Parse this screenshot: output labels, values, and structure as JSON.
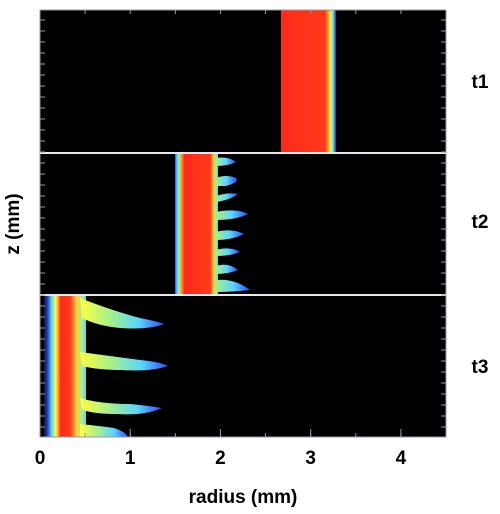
{
  "chart_data": {
    "type": "heatmap",
    "title": "",
    "xlabel": "radius (mm)",
    "ylabel": "z (mm)",
    "xlim": [
      0,
      4.5
    ],
    "x_ticks": [
      "0",
      "1",
      "2",
      "3",
      "4"
    ],
    "x_tick_values": [
      0,
      1,
      2,
      3,
      4
    ],
    "colormap": [
      "#000000",
      "#1d2a8c",
      "#2f6bff",
      "#59d6ff",
      "#a8f08a",
      "#ffff40",
      "#ff9a2e",
      "#ff2a1a"
    ],
    "grid": false,
    "legend": "none",
    "panels": [
      {
        "label": "t1",
        "description_values": {
          "front_inner_radius": 2.67,
          "front_outer_radius": 3.25
        }
      },
      {
        "label": "t2",
        "description_values": {
          "front_inner_radius": 1.5,
          "front_outer_radius": 1.95,
          "finger_tips_max_radius": 2.25
        }
      },
      {
        "label": "t3",
        "description_values": {
          "front_inner_radius": 0.05,
          "front_outer_radius": 0.55,
          "finger_tips_max_radius": 1.4
        }
      }
    ]
  }
}
